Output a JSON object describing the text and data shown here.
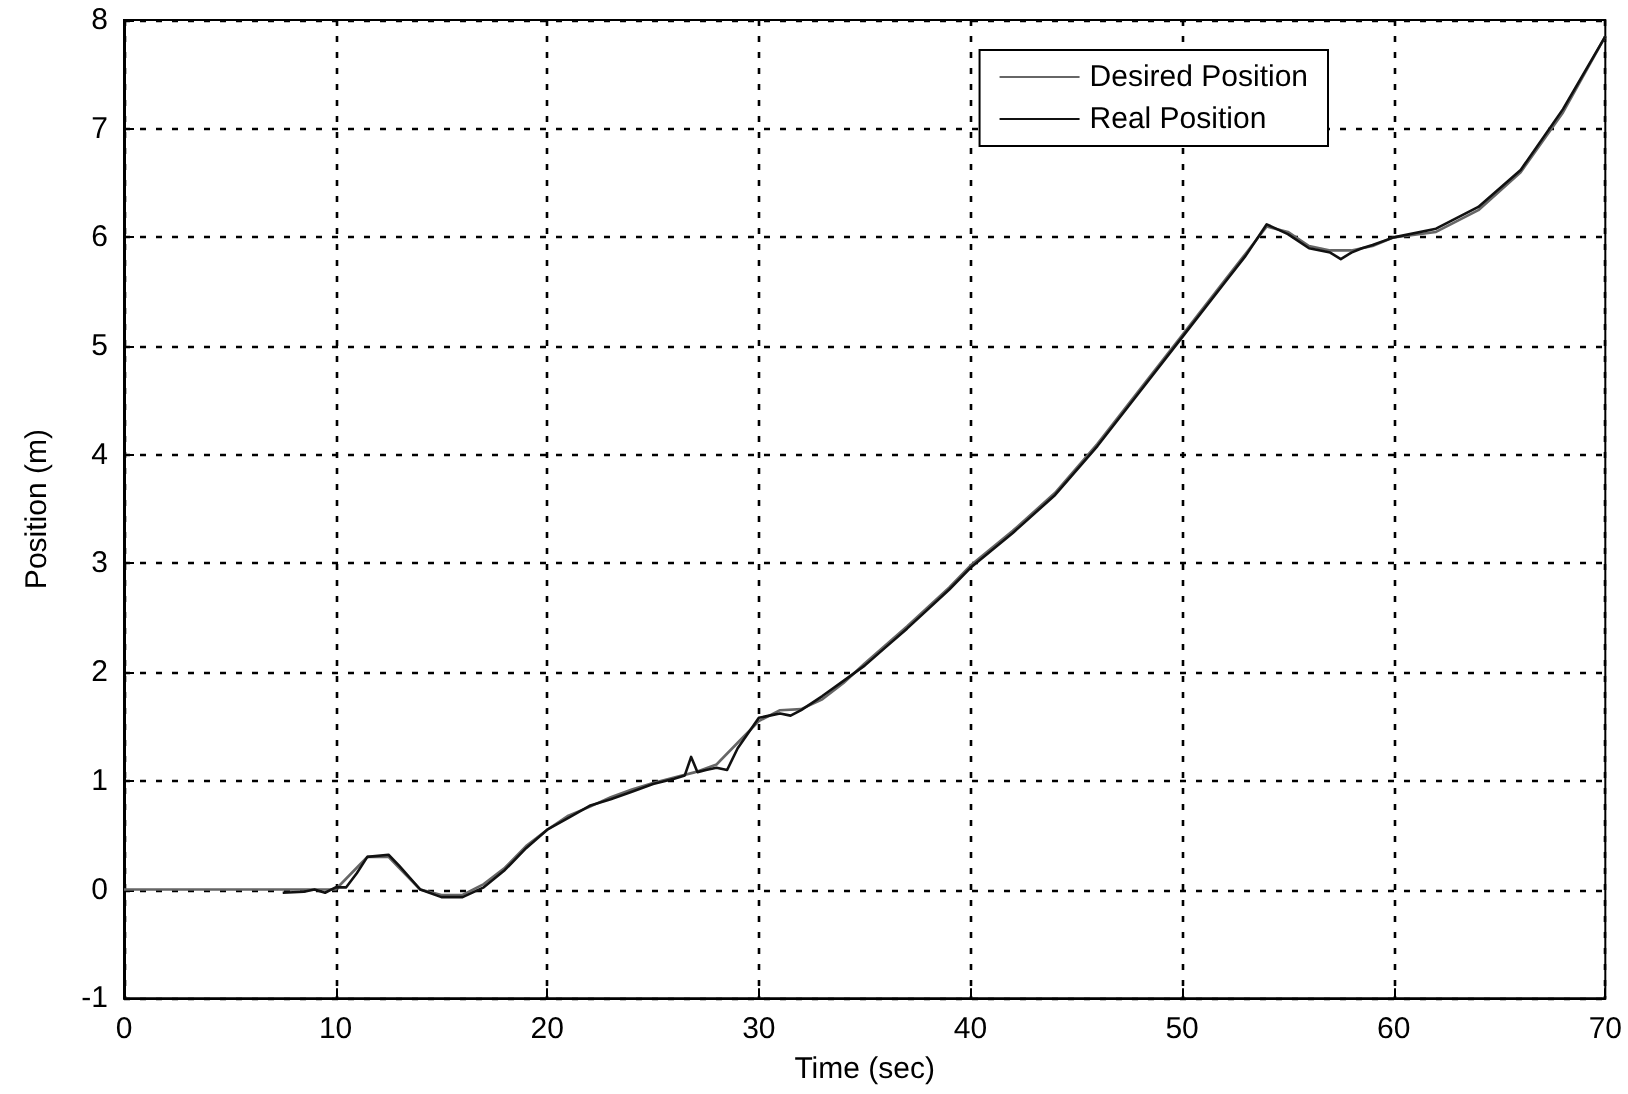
{
  "chart_data": {
    "type": "line",
    "xlabel": "Time (sec)",
    "ylabel": "Position (m)",
    "xlim": [
      0,
      70
    ],
    "xticks": [
      0,
      10,
      20,
      30,
      40,
      50,
      60,
      70
    ],
    "ylim": [
      -1,
      8
    ],
    "yticks": [
      -1,
      0,
      1,
      2,
      3,
      4,
      5,
      6,
      7,
      8
    ],
    "grid": true,
    "legend": "top right",
    "marker": "none",
    "line_style": "solid",
    "series": [
      {
        "name": "Desired Position",
        "color": "#666666",
        "x": [
          0,
          8,
          10,
          11,
          11.5,
          12.5,
          13,
          14,
          15,
          16,
          17,
          18,
          19,
          20,
          21,
          22,
          23,
          24,
          25,
          26,
          27,
          28,
          29,
          30,
          31,
          32,
          33,
          34,
          35,
          36,
          37,
          38,
          39,
          40,
          42,
          44,
          46,
          48,
          50,
          52,
          53,
          54,
          55,
          56,
          57,
          58,
          59,
          60,
          62,
          64,
          66,
          68,
          70
        ],
        "values": [
          0,
          0,
          0,
          0.2,
          0.3,
          0.3,
          0.2,
          0,
          -0.05,
          -0.05,
          0.05,
          0.2,
          0.4,
          0.55,
          0.68,
          0.76,
          0.85,
          0.92,
          0.98,
          1.03,
          1.08,
          1.15,
          1.35,
          1.55,
          1.65,
          1.66,
          1.75,
          1.9,
          2.08,
          2.25,
          2.42,
          2.6,
          2.78,
          2.98,
          3.3,
          3.65,
          4.1,
          4.6,
          5.1,
          5.6,
          5.85,
          6.1,
          6.05,
          5.92,
          5.88,
          5.88,
          5.92,
          6.0,
          6.05,
          6.25,
          6.6,
          7.15,
          7.85
        ]
      },
      {
        "name": "Real Position",
        "color": "#111111",
        "x": [
          7.5,
          8.5,
          9,
          9.5,
          10,
          10.5,
          11,
          11.5,
          12.5,
          13,
          14,
          15,
          16,
          17,
          18,
          19,
          20,
          21,
          22,
          23,
          24,
          25,
          26,
          26.5,
          26.8,
          27.1,
          27.5,
          28,
          28.5,
          29,
          30,
          30.5,
          31,
          31.5,
          32,
          33,
          34,
          35,
          36,
          37,
          38,
          39,
          40,
          42,
          44,
          46,
          48,
          50,
          52,
          53,
          54,
          55,
          56,
          57,
          57.5,
          58,
          58.5,
          59,
          60,
          62,
          64,
          66,
          68,
          70
        ],
        "values": [
          -0.03,
          -0.02,
          0,
          -0.03,
          0.02,
          0.02,
          0.15,
          0.3,
          0.32,
          0.22,
          0,
          -0.07,
          -0.07,
          0.02,
          0.18,
          0.38,
          0.55,
          0.66,
          0.77,
          0.83,
          0.9,
          0.97,
          1.02,
          1.05,
          1.22,
          1.08,
          1.1,
          1.12,
          1.1,
          1.3,
          1.58,
          1.6,
          1.62,
          1.6,
          1.65,
          1.78,
          1.92,
          2.06,
          2.23,
          2.4,
          2.58,
          2.76,
          2.96,
          3.28,
          3.63,
          4.08,
          4.58,
          5.08,
          5.58,
          5.83,
          6.12,
          6.03,
          5.9,
          5.86,
          5.8,
          5.86,
          5.9,
          5.93,
          6.0,
          6.08,
          6.28,
          6.62,
          7.18,
          7.85
        ]
      }
    ]
  }
}
